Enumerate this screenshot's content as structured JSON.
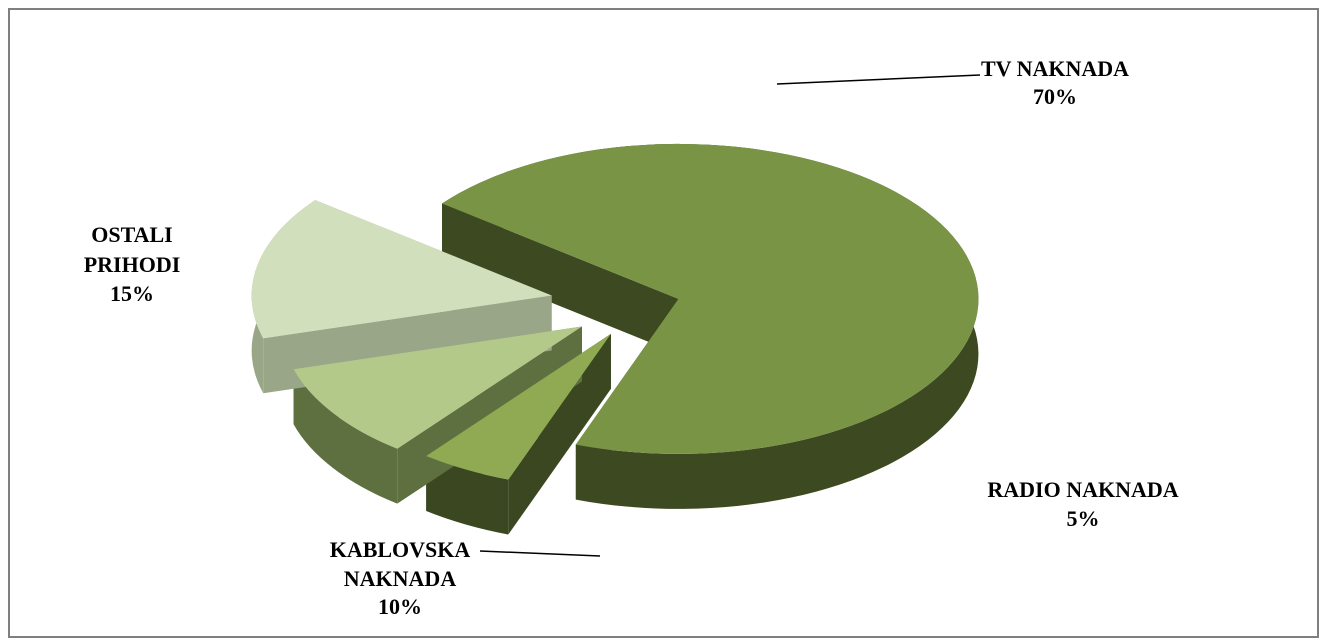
{
  "chart_data": {
    "type": "pie",
    "style": "3d-exploded",
    "slices": [
      {
        "label_lines": [
          "TV NAKNADA"
        ],
        "value_label": "70%",
        "value": 70,
        "color": "#7a9446",
        "side_color": "#3d4a21"
      },
      {
        "label_lines": [
          "RADIO NAKNADA"
        ],
        "value_label": "5%",
        "value": 5,
        "color": "#8faa52",
        "side_color": "#3a4720"
      },
      {
        "label_lines": [
          "KABLOVSKA",
          "NAKNADA"
        ],
        "value_label": "10%",
        "value": 10,
        "color": "#b3c98a",
        "side_color": "#5e7040"
      },
      {
        "label_lines": [
          "OSTALI",
          "PRIHODI"
        ],
        "value_label": "15%",
        "value": 15,
        "color": "#d2dfbc",
        "side_color": "#9aa688"
      }
    ]
  }
}
